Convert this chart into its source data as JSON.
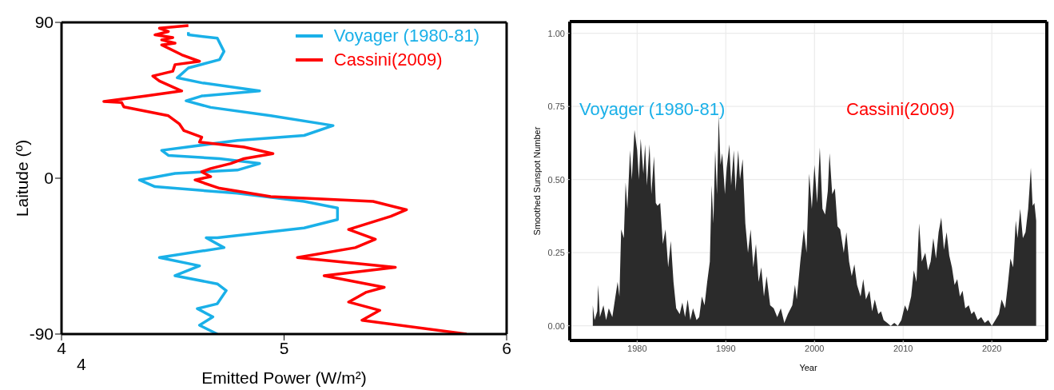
{
  "chart_data": [
    {
      "type": "line",
      "xlabel": "Emitted Power (W/m²)",
      "ylabel": "Laitude (º)",
      "xlim": [
        4,
        6
      ],
      "xticks": [
        4,
        5,
        6
      ],
      "ylim": [
        -90,
        90
      ],
      "yticks": [
        -90,
        0,
        90
      ],
      "legend": "top right",
      "annotations": [
        "4"
      ],
      "series": [
        {
          "name": "Voyager (1980-81)",
          "color": "#1ab0e8",
          "x": [
            4.57,
            4.57,
            4.7,
            4.73,
            4.71,
            4.57,
            4.52,
            4.63,
            4.89,
            4.63,
            4.56,
            4.67,
            4.94,
            5.22,
            5.09,
            4.79,
            4.45,
            4.48,
            4.71,
            4.89,
            4.79,
            4.51,
            4.35,
            4.42,
            4.79,
            5.09,
            5.24,
            5.24,
            5.09,
            4.7,
            4.65,
            4.73,
            4.44,
            4.62,
            4.51,
            4.7,
            4.74,
            4.7,
            4.61,
            4.68,
            4.62,
            4.7
          ],
          "values": [
            84.3,
            82.8,
            80.9,
            73.2,
            68.5,
            63.7,
            58,
            55.1,
            50.4,
            47.5,
            44.7,
            40.9,
            36.1,
            30.4,
            24.7,
            21.8,
            16.1,
            13.2,
            11.3,
            8.5,
            4.7,
            2.8,
            -1,
            -4.9,
            -8.7,
            -13.4,
            -17.2,
            -23.9,
            -28.7,
            -34.4,
            -34.4,
            -40.1,
            -45.8,
            -50.6,
            -56.3,
            -61,
            -64.9,
            -72.5,
            -75.3,
            -80.1,
            -84.9,
            -90
          ]
        },
        {
          "name": "Cassini(2009)",
          "color": "#ff0000",
          "x": [
            4.57,
            4.44,
            4.48,
            4.42,
            4.5,
            4.45,
            4.51,
            4.45,
            4.54,
            4.62,
            4.51,
            4.5,
            4.41,
            4.44,
            4.54,
            4.38,
            4.19,
            4.27,
            4.28,
            4.48,
            4.53,
            4.55,
            4.63,
            4.62,
            4.82,
            4.95,
            4.82,
            4.76,
            4.67,
            4.63,
            4.67,
            4.6,
            4.71,
            4.94,
            5.4,
            5.55,
            5.48,
            5.29,
            5.41,
            5.32,
            5.06,
            5.5,
            5.18,
            5.45,
            5.37,
            5.29,
            5.43,
            5.35,
            5.82
          ],
          "values": [
            88.1,
            86.6,
            84.7,
            82.8,
            81.2,
            79.9,
            78,
            77,
            71.3,
            67.5,
            65.6,
            61.8,
            59,
            56.1,
            50.4,
            47.5,
            44.3,
            43.7,
            41.2,
            36.1,
            31.3,
            27.5,
            23.7,
            20.9,
            18,
            14.2,
            11.3,
            8.5,
            5.6,
            3.7,
            0.9,
            -1,
            -5.8,
            -10.6,
            -13.4,
            -18.2,
            -22,
            -29.6,
            -35.3,
            -40.1,
            -45.8,
            -51.5,
            -56.3,
            -63,
            -65.8,
            -71.5,
            -76.3,
            -82,
            -90
          ]
        }
      ]
    },
    {
      "type": "area",
      "xlabel": "Year",
      "ylabel": "Smoothed Sunspot Number",
      "xlim": [
        1972.4,
        2026.2
      ],
      "xticks": [
        1980,
        1990,
        2000,
        2010,
        2020
      ],
      "ylim": [
        -0.05,
        1.04
      ],
      "yticks": [
        {
          "value": 0,
          "label": "0.00"
        },
        {
          "value": 0.25,
          "label": "0.25"
        },
        {
          "value": 0.5,
          "label": "0.50"
        },
        {
          "value": 0.75,
          "label": "0.75"
        },
        {
          "value": 1,
          "label": "1.00"
        }
      ],
      "grid": true,
      "annotations": [
        "Voyager (1980-81)",
        "Cassini(2009)"
      ],
      "x": [
        1975.0,
        1975.2,
        1975.5,
        1975.6,
        1975.8,
        1976.2,
        1976.5,
        1976.8,
        1977.2,
        1977.5,
        1977.8,
        1978.0,
        1978.2,
        1978.5,
        1978.7,
        1978.9,
        1979.2,
        1979.4,
        1979.7,
        1980.0,
        1980.2,
        1980.4,
        1980.7,
        1980.9,
        1981.1,
        1981.4,
        1981.6,
        1981.9,
        1982.1,
        1982.3,
        1982.6,
        1982.9,
        1983.2,
        1983.5,
        1983.8,
        1984.1,
        1984.4,
        1984.8,
        1985.1,
        1985.4,
        1985.7,
        1986.0,
        1986.3,
        1986.7,
        1987.0,
        1987.3,
        1987.6,
        1987.9,
        1988.2,
        1988.4,
        1988.6,
        1988.8,
        1989.0,
        1989.2,
        1989.4,
        1989.6,
        1989.9,
        1990.1,
        1990.4,
        1990.6,
        1990.9,
        1991.1,
        1991.4,
        1991.6,
        1991.9,
        1992.2,
        1992.5,
        1992.8,
        1993.1,
        1993.4,
        1993.7,
        1994.0,
        1994.3,
        1994.6,
        1995.0,
        1995.4,
        1995.8,
        1996.2,
        1996.6,
        1997.0,
        1997.5,
        1997.8,
        1998.0,
        1998.4,
        1998.8,
        1999.1,
        1999.4,
        1999.7,
        2000.0,
        2000.3,
        2000.6,
        2000.9,
        2001.2,
        2001.5,
        2001.7,
        2002.0,
        2002.3,
        2002.6,
        2002.9,
        2003.3,
        2003.6,
        2003.9,
        2004.2,
        2004.5,
        2004.8,
        2005.2,
        2005.5,
        2005.8,
        2006.2,
        2006.5,
        2006.8,
        2007.2,
        2007.5,
        2007.8,
        2008.2,
        2008.6,
        2009.0,
        2009.4,
        2009.8,
        2010.2,
        2010.5,
        2010.9,
        2011.2,
        2011.5,
        2011.8,
        2012.1,
        2012.5,
        2012.8,
        2013.1,
        2013.4,
        2013.7,
        2014.0,
        2014.3,
        2014.6,
        2014.9,
        2015.2,
        2015.5,
        2015.8,
        2016.1,
        2016.4,
        2016.7,
        2017.0,
        2017.4,
        2017.7,
        2018.0,
        2018.4,
        2018.8,
        2019.2,
        2019.6,
        2020.0,
        2020.4,
        2020.8,
        2021.1,
        2021.5,
        2021.8,
        2022.1,
        2022.4,
        2022.7,
        2022.9,
        2023.2,
        2023.5,
        2023.8,
        2024.1,
        2024.4,
        2024.6,
        2024.8,
        2025.0
      ],
      "series": [
        {
          "color": "#2b2b2b",
          "values": [
            0.07,
            0.02,
            0.05,
            0.14,
            0.03,
            0.07,
            0.02,
            0.06,
            0.03,
            0.09,
            0.15,
            0.1,
            0.33,
            0.3,
            0.49,
            0.4,
            0.6,
            0.5,
            0.67,
            0.6,
            0.5,
            0.64,
            0.52,
            0.62,
            0.48,
            0.62,
            0.45,
            0.58,
            0.42,
            0.41,
            0.42,
            0.28,
            0.33,
            0.2,
            0.29,
            0.15,
            0.06,
            0.04,
            0.08,
            0.03,
            0.09,
            0.02,
            0.06,
            0.02,
            0.03,
            0.1,
            0.07,
            0.15,
            0.22,
            0.48,
            0.35,
            0.6,
            0.45,
            0.72,
            0.55,
            0.59,
            0.45,
            0.54,
            0.62,
            0.48,
            0.6,
            0.46,
            0.6,
            0.5,
            0.57,
            0.35,
            0.25,
            0.33,
            0.2,
            0.28,
            0.15,
            0.2,
            0.1,
            0.17,
            0.07,
            0.06,
            0.03,
            0.06,
            0.01,
            0.04,
            0.07,
            0.14,
            0.09,
            0.22,
            0.33,
            0.25,
            0.52,
            0.4,
            0.55,
            0.42,
            0.61,
            0.4,
            0.38,
            0.46,
            0.59,
            0.45,
            0.47,
            0.34,
            0.33,
            0.25,
            0.32,
            0.22,
            0.17,
            0.21,
            0.14,
            0.1,
            0.16,
            0.09,
            0.12,
            0.05,
            0.09,
            0.04,
            0.05,
            0.02,
            0.01,
            0.0,
            0.01,
            0.0,
            0.02,
            0.07,
            0.05,
            0.1,
            0.19,
            0.15,
            0.35,
            0.22,
            0.25,
            0.19,
            0.22,
            0.3,
            0.23,
            0.32,
            0.37,
            0.26,
            0.32,
            0.24,
            0.2,
            0.14,
            0.16,
            0.1,
            0.12,
            0.06,
            0.07,
            0.04,
            0.05,
            0.02,
            0.03,
            0.01,
            0.02,
            0.0,
            0.02,
            0.04,
            0.09,
            0.06,
            0.14,
            0.23,
            0.2,
            0.36,
            0.3,
            0.4,
            0.3,
            0.32,
            0.4,
            0.54,
            0.41,
            0.42,
            0.36
          ]
        }
      ]
    }
  ]
}
